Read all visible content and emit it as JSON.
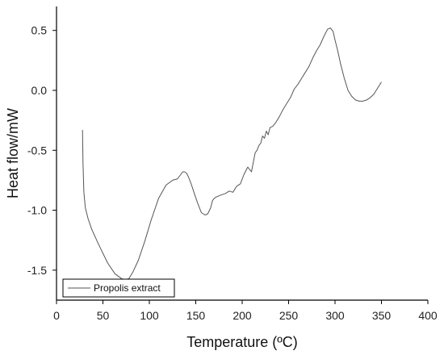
{
  "chart_data": {
    "type": "line",
    "title": "",
    "xlabel": "Temperature (ºC)",
    "ylabel": "Heat flow/mW",
    "xlim": [
      0,
      400
    ],
    "ylim": [
      -1.75,
      0.7
    ],
    "x_ticks": [
      0,
      50,
      100,
      150,
      200,
      250,
      300,
      350,
      400
    ],
    "y_ticks": [
      -1.5,
      -1.0,
      -0.5,
      0.0,
      0.5
    ],
    "x_tick_labels": [
      "0",
      "50",
      "100",
      "150",
      "200",
      "250",
      "300",
      "350",
      "400"
    ],
    "y_tick_labels": [
      "-1.5",
      "-1.0",
      "-0.5",
      "0.0",
      "0.5"
    ],
    "grid": false,
    "legend_position": "bottom-left",
    "series": [
      {
        "name": "Propolis extract",
        "color": "#555555",
        "x": [
          28,
          28.5,
          29.5,
          31,
          34,
          38,
          45,
          55,
          63,
          70,
          74,
          78,
          82,
          88,
          95,
          102,
          110,
          118,
          125,
          130,
          133,
          136,
          138,
          140,
          142,
          145,
          148,
          152,
          156,
          160,
          163,
          166,
          168,
          170,
          172,
          175,
          178,
          182,
          186,
          190,
          194,
          198,
          202,
          206,
          210,
          212,
          214,
          216,
          218,
          220,
          222,
          224,
          226,
          228,
          230,
          233,
          236,
          240,
          244,
          248,
          252,
          256,
          260,
          264,
          268,
          272,
          276,
          280,
          284,
          288,
          292,
          295,
          298,
          300,
          303,
          306,
          310,
          314,
          318,
          322,
          326,
          330,
          334,
          338,
          342,
          346,
          350
        ],
        "y": [
          -0.33,
          -0.6,
          -0.85,
          -0.98,
          -1.07,
          -1.16,
          -1.28,
          -1.44,
          -1.53,
          -1.57,
          -1.58,
          -1.57,
          -1.52,
          -1.42,
          -1.26,
          -1.08,
          -0.9,
          -0.79,
          -0.75,
          -0.74,
          -0.71,
          -0.68,
          -0.68,
          -0.69,
          -0.72,
          -0.78,
          -0.85,
          -0.94,
          -1.02,
          -1.04,
          -1.03,
          -0.98,
          -0.92,
          -0.9,
          -0.89,
          -0.88,
          -0.87,
          -0.86,
          -0.84,
          -0.85,
          -0.8,
          -0.78,
          -0.7,
          -0.64,
          -0.68,
          -0.6,
          -0.52,
          -0.5,
          -0.46,
          -0.44,
          -0.38,
          -0.4,
          -0.34,
          -0.37,
          -0.31,
          -0.3,
          -0.27,
          -0.22,
          -0.16,
          -0.11,
          -0.06,
          0.01,
          0.05,
          0.1,
          0.15,
          0.2,
          0.27,
          0.33,
          0.38,
          0.45,
          0.51,
          0.52,
          0.49,
          0.42,
          0.33,
          0.22,
          0.1,
          0.0,
          -0.05,
          -0.08,
          -0.09,
          -0.09,
          -0.08,
          -0.06,
          -0.03,
          0.02,
          0.07
        ]
      }
    ]
  }
}
